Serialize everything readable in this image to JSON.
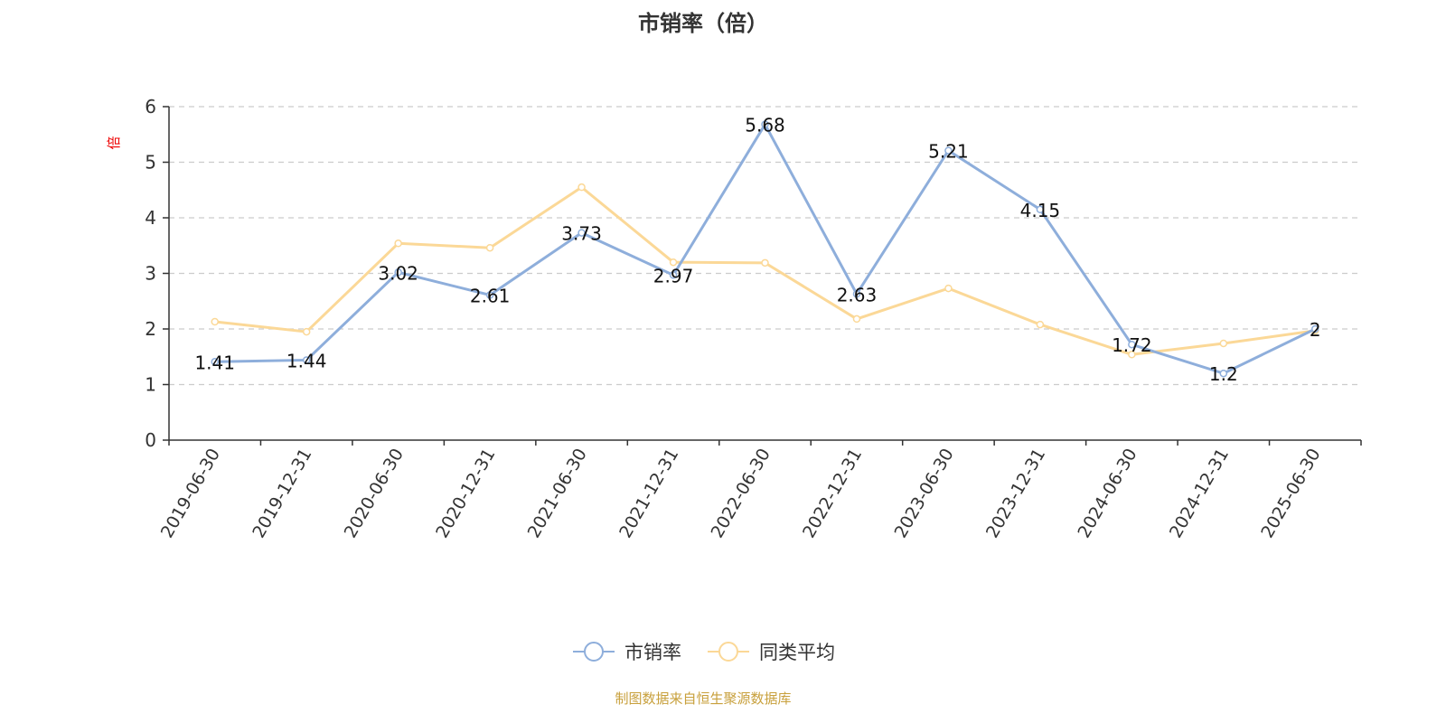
{
  "chart_data": {
    "type": "line",
    "title": "市销率（倍）",
    "ylabel": "倍",
    "xlabel": "",
    "ylim": [
      0,
      6
    ],
    "yticks": [
      0,
      1,
      2,
      3,
      4,
      5,
      6
    ],
    "grid": true,
    "legend_position": "bottom-center",
    "categories": [
      "2019-06-30",
      "2019-12-31",
      "2020-06-30",
      "2020-12-31",
      "2021-06-30",
      "2021-12-31",
      "2022-06-30",
      "2022-12-31",
      "2023-06-30",
      "2023-12-31",
      "2024-06-30",
      "2024-12-31",
      "2025-06-30"
    ],
    "series": [
      {
        "name": "市销率",
        "color": "#8eaedb",
        "labels": true,
        "values": [
          1.41,
          1.44,
          3.02,
          2.61,
          3.73,
          2.97,
          5.68,
          2.63,
          5.21,
          4.15,
          1.72,
          1.2,
          2
        ]
      },
      {
        "name": "同类平均",
        "color": "#fbd897",
        "labels": false,
        "values": [
          2.13,
          1.95,
          3.54,
          3.46,
          4.55,
          3.2,
          3.19,
          2.18,
          2.73,
          2.08,
          1.54,
          1.74,
          1.97
        ]
      }
    ]
  },
  "source": "制图数据来自恒生聚源数据库"
}
